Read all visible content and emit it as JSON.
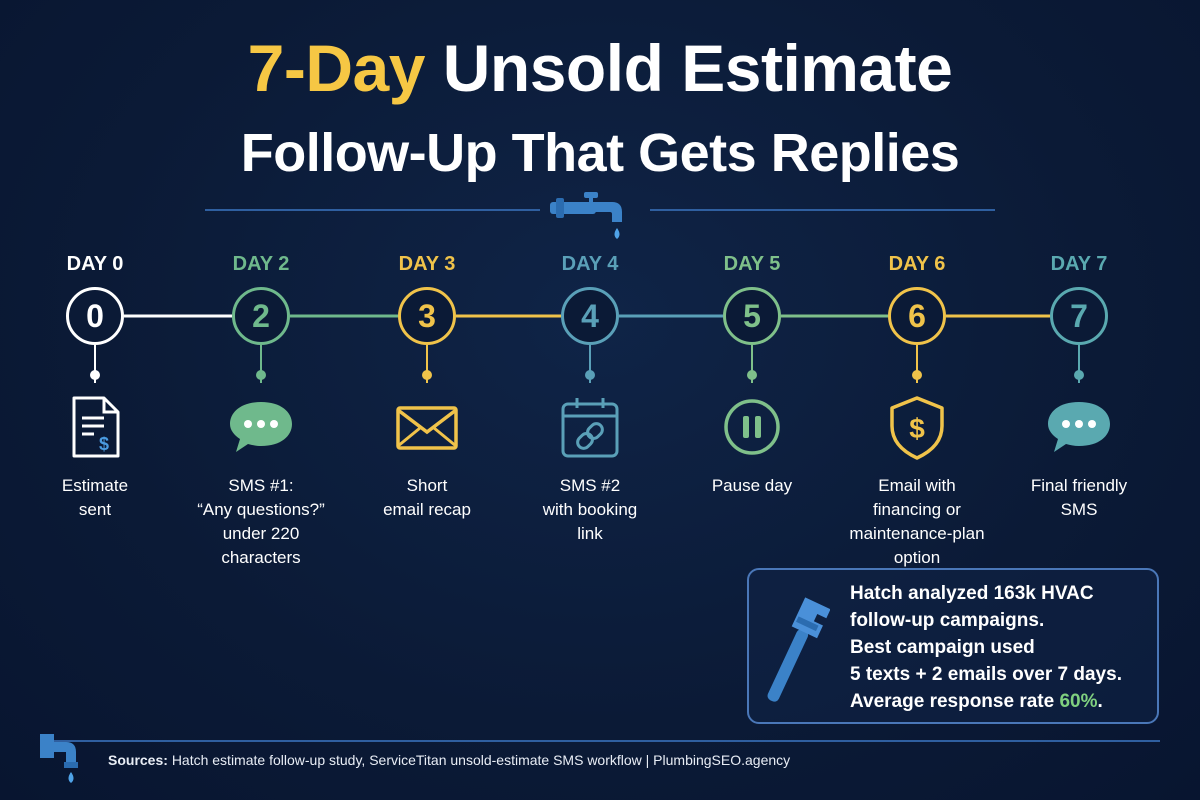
{
  "title": {
    "line1_accent": "7-Day",
    "line1_rest": "Unsold Estimate",
    "line2": "Follow-Up That Gets Replies"
  },
  "steps": [
    {
      "day_label": "DAY 0",
      "number": "0",
      "icon": "document-dollar-icon",
      "caption_lines": [
        "Estimate",
        "sent"
      ],
      "color": "#ffffff"
    },
    {
      "day_label": "DAY 2",
      "number": "2",
      "icon": "chat-bubble-icon",
      "caption_lines": [
        "SMS #1:",
        "“Any questions?”",
        "under 220",
        "characters"
      ],
      "color": "#6fb98c"
    },
    {
      "day_label": "DAY 3",
      "number": "3",
      "icon": "envelope-icon",
      "caption_lines": [
        "Short",
        "email recap"
      ],
      "color": "#f0c34a"
    },
    {
      "day_label": "DAY 4",
      "number": "4",
      "icon": "calendar-link-icon",
      "caption_lines": [
        "SMS #2",
        "with booking",
        "link"
      ],
      "color": "#5aa0b8"
    },
    {
      "day_label": "DAY 5",
      "number": "5",
      "icon": "pause-icon",
      "caption_lines": [
        "Pause day"
      ],
      "color": "#7fc08a"
    },
    {
      "day_label": "DAY 6",
      "number": "6",
      "icon": "shield-dollar-icon",
      "caption_lines": [
        "Email with",
        "financing or",
        "maintenance-plan",
        "option"
      ],
      "color": "#f0c34a"
    },
    {
      "day_label": "DAY 7",
      "number": "7",
      "icon": "chat-bubble-icon",
      "caption_lines": [
        "Final friendly",
        "SMS"
      ],
      "color": "#5aa9b0"
    }
  ],
  "info_box": {
    "icon": "wrench-icon",
    "lines": [
      "Hatch analyzed 163k HVAC",
      "follow-up campaigns.",
      "Best campaign used",
      "5 texts + 2 emails over 7 days."
    ],
    "last_line_prefix": "Average response rate ",
    "highlight_value": "60%",
    "last_line_suffix": "."
  },
  "footer": {
    "sources_label": "Sources:",
    "sources_text": "Hatch estimate follow-up study, ServiceTitan unsold-estimate SMS workflow  |  PlumbingSEO.agency"
  },
  "colors": {
    "background": "#0b1a36",
    "accent_yellow": "#f6c744",
    "line_blue": "#2f5fa0",
    "highlight_green": "#7fd07f"
  }
}
